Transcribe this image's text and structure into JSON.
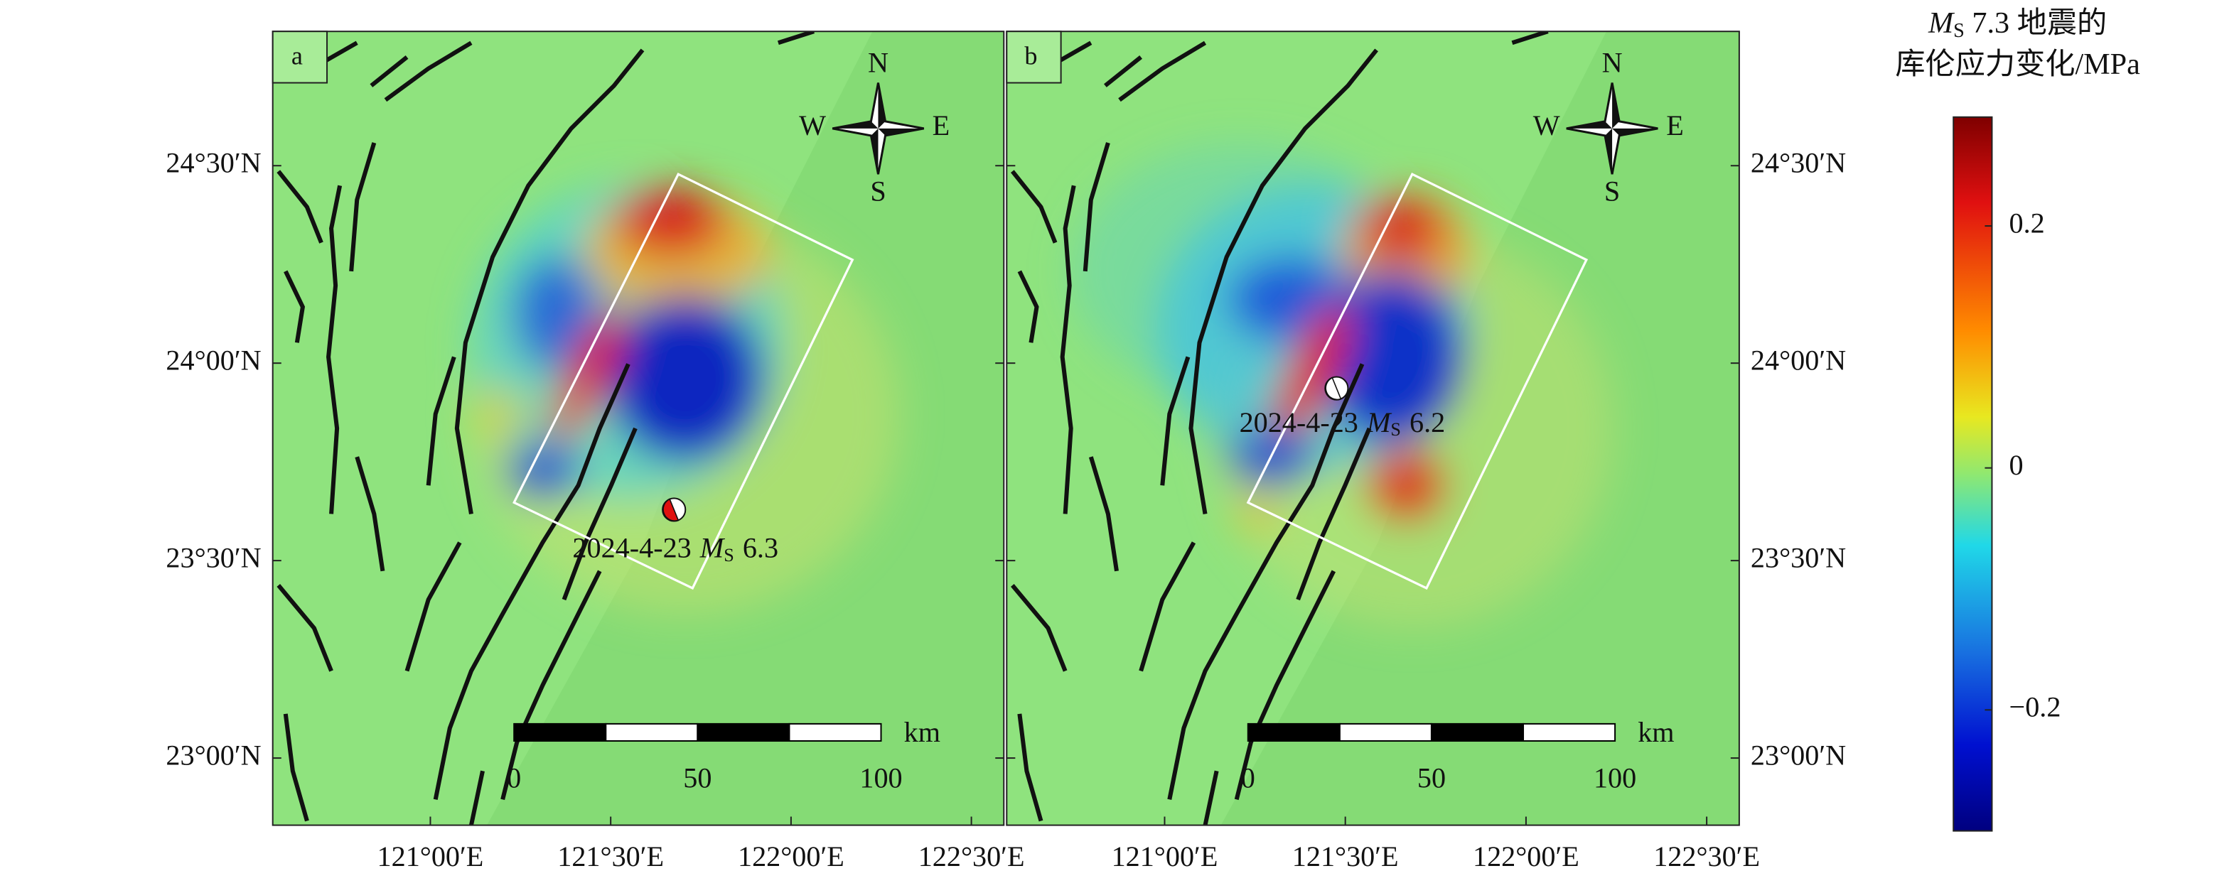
{
  "figure": {
    "panels": [
      {
        "label": "a",
        "xlim": [
          120.563,
          122.59
        ],
        "ylim": [
          22.83,
          24.84
        ],
        "xticks": [
          {
            "value": 121,
            "label": "121°00′E"
          },
          {
            "value": 121.5,
            "label": "121°30′E"
          },
          {
            "value": 122,
            "label": "122°00′E"
          },
          {
            "value": 122.5,
            "label": "122°30′E"
          }
        ],
        "yticks": [
          {
            "value": 24.5,
            "label": "24°30′N"
          },
          {
            "value": 24,
            "label": "24°00′N"
          },
          {
            "value": 23.5,
            "label": "23°30′N"
          },
          {
            "value": 23,
            "label": "23°00′N"
          }
        ],
        "compass": {
          "n": "N",
          "s": "S",
          "e": "E",
          "w": "W"
        },
        "scalebar": {
          "ticks": [
            0,
            50,
            100
          ],
          "unit": "km"
        },
        "event": {
          "date": "2024-4-23",
          "mag_symbol": "M",
          "mag_sub": "S",
          "mag": 6.3
        }
      },
      {
        "label": "b",
        "xlim": [
          120.563,
          122.59
        ],
        "ylim": [
          22.83,
          24.84
        ],
        "xticks": [
          {
            "value": 121,
            "label": "121°00′E"
          },
          {
            "value": 121.5,
            "label": "121°30′E"
          },
          {
            "value": 122,
            "label": "122°00′E"
          },
          {
            "value": 122.5,
            "label": "122°30′E"
          }
        ],
        "yticks": [
          {
            "value": 24.5,
            "label": "24°30′N"
          },
          {
            "value": 24,
            "label": "24°00′N"
          },
          {
            "value": 23.5,
            "label": "23°30′N"
          },
          {
            "value": 23,
            "label": "23°00′N"
          }
        ],
        "compass": {
          "n": "N",
          "s": "S",
          "e": "E",
          "w": "W"
        },
        "scalebar": {
          "ticks": [
            0,
            50,
            100
          ],
          "unit": "km"
        },
        "event": {
          "date": "2024-4-23",
          "mag_symbol": "M",
          "mag_sub": "S",
          "mag": 6.2
        }
      }
    ],
    "colorbar": {
      "title": {
        "symbol": "M",
        "sub": "S",
        "rest": " 7.3 地震的",
        "line2": "库伦应力变化/MPa"
      },
      "lim": [
        -0.3,
        0.29
      ],
      "ticks": [
        0.2,
        0,
        {
          "value": -0.2,
          "label": "−0.2"
        }
      ]
    }
  }
}
